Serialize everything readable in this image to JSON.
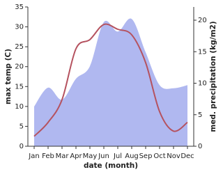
{
  "chart_data": {
    "type": "line",
    "xlabel": "date (month)",
    "ylabel": "max temp (C)",
    "y2label": "med. precipitation (kg/m2)",
    "categories": [
      "Jan",
      "Feb",
      "Mar",
      "Apr",
      "May",
      "Jun",
      "Jul",
      "Aug",
      "Sep",
      "Oct",
      "Nov",
      "Dec"
    ],
    "series": [
      {
        "color": "#b5525f",
        "values": [
          2.5,
          6,
          11.7,
          24.5,
          26.8,
          30.6,
          29.4,
          28,
          21,
          8.7,
          3.8,
          6
        ]
      },
      {
        "color": "#b0b8f0",
        "kind": "area",
        "axis": "y2",
        "values": [
          6.3,
          9.3,
          7.4,
          10.7,
          12.7,
          19.7,
          18.2,
          20.2,
          14.9,
          9.7,
          9.2,
          9.7
        ]
      }
    ],
    "ylim": [
      0,
      35
    ],
    "yticks": [
      0,
      5,
      10,
      15,
      20,
      25,
      30,
      35
    ],
    "y2lim": [
      0,
      22.1
    ],
    "y2ticks": [
      0,
      5,
      10,
      15,
      20
    ]
  }
}
